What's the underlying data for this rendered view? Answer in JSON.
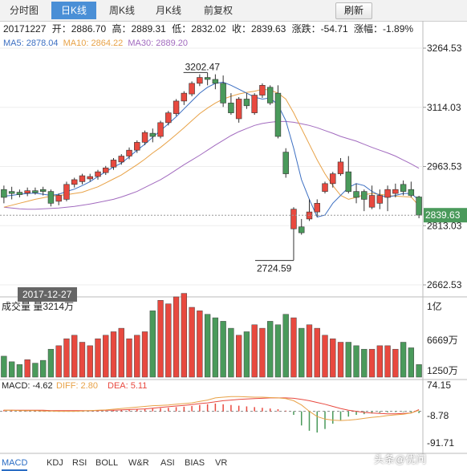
{
  "tabs": [
    {
      "label": "分时图"
    },
    {
      "label": "日K线"
    },
    {
      "label": "周K线"
    },
    {
      "label": "月K线"
    },
    {
      "label": "前复权"
    }
  ],
  "refresh_label": "刷新",
  "info": {
    "date": "20171227",
    "open": "开：2886.70",
    "high": "高：2889.31",
    "low": "低：2832.02",
    "close": "收：2839.63",
    "change": "涨跌：-54.71",
    "pct": "涨幅：-1.89%"
  },
  "ma": {
    "ma5": "MA5: 2878.04",
    "ma10": "MA10: 2864.22",
    "ma30": "MA30: 2889.20"
  },
  "price_axis": [
    "3264.53",
    "3114.03",
    "2963.53",
    "2813.03",
    "2662.53"
  ],
  "current_price": "2839.63",
  "annotations": {
    "high": "3202.47",
    "low": "2724.59",
    "date": "2017-12-27"
  },
  "volume": {
    "title": "成交量 量3214万",
    "axis": [
      "1亿",
      "6669万",
      "1250万"
    ]
  },
  "macd": {
    "title": "MACD: -4.62",
    "diff": "DIFF: 2.80",
    "dea": "DEA: 5.11",
    "axis": [
      "74.15",
      "-8.78",
      "-91.71"
    ]
  },
  "indicator_tabs": [
    "MACD",
    "KDJ",
    "RSI",
    "BOLL",
    "W&R",
    "ASI",
    "BIAS",
    "VR"
  ],
  "watermark": "头条@优问",
  "colors": {
    "up": "#e8493f",
    "down": "#4a9a5b",
    "ma5": "#3c6fc2",
    "ma10": "#e8a247",
    "ma30": "#a26bbf"
  },
  "chart_data": {
    "type": "candlestick",
    "candles": [
      [
        2905,
        2915,
        2870,
        2885
      ],
      [
        2900,
        2912,
        2880,
        2895
      ],
      [
        2898,
        2905,
        2885,
        2892
      ],
      [
        2896,
        2910,
        2888,
        2902
      ],
      [
        2902,
        2910,
        2892,
        2897
      ],
      [
        2905,
        2912,
        2890,
        2900
      ],
      [
        2900,
        2905,
        2862,
        2870
      ],
      [
        2875,
        2895,
        2865,
        2890
      ],
      [
        2880,
        2925,
        2875,
        2918
      ],
      [
        2918,
        2935,
        2910,
        2930
      ],
      [
        2925,
        2945,
        2918,
        2940
      ],
      [
        2932,
        2945,
        2925,
        2938
      ],
      [
        2938,
        2955,
        2930,
        2950
      ],
      [
        2948,
        2965,
        2942,
        2960
      ],
      [
        2962,
        2985,
        2955,
        2980
      ],
      [
        2975,
        2995,
        2968,
        2990
      ],
      [
        2990,
        3012,
        2982,
        3005
      ],
      [
        3005,
        3030,
        2998,
        3025
      ],
      [
        3025,
        3055,
        3018,
        3050
      ],
      [
        3048,
        3060,
        3025,
        3040
      ],
      [
        3040,
        3080,
        3035,
        3075
      ],
      [
        3075,
        3105,
        3068,
        3100
      ],
      [
        3098,
        3135,
        3092,
        3130
      ],
      [
        3130,
        3155,
        3120,
        3150
      ],
      [
        3148,
        3180,
        3142,
        3175
      ],
      [
        3175,
        3198,
        3168,
        3190
      ],
      [
        3190,
        3202,
        3170,
        3185
      ],
      [
        3185,
        3198,
        3160,
        3175
      ],
      [
        3175,
        3195,
        3115,
        3125
      ],
      [
        3125,
        3150,
        3095,
        3100
      ],
      [
        3085,
        3140,
        3075,
        3135
      ],
      [
        3135,
        3150,
        3110,
        3118
      ],
      [
        3100,
        3150,
        3095,
        3145
      ],
      [
        3145,
        3175,
        3138,
        3170
      ],
      [
        3165,
        3170,
        3120,
        3125
      ],
      [
        3150,
        3170,
        3035,
        3040
      ],
      [
        3000,
        3010,
        2935,
        2945
      ],
      [
        2805,
        2860,
        2725,
        2855
      ],
      [
        2810,
        2830,
        2790,
        2795
      ],
      [
        2830,
        2880,
        2825,
        2848
      ],
      [
        2848,
        2880,
        2835,
        2870
      ],
      [
        2900,
        2925,
        2895,
        2920
      ],
      [
        2920,
        2950,
        2910,
        2945
      ],
      [
        2945,
        2985,
        2940,
        2975
      ],
      [
        2950,
        2990,
        2895,
        2900
      ],
      [
        2900,
        2920,
        2870,
        2885
      ],
      [
        2900,
        2905,
        2850,
        2880
      ],
      [
        2860,
        2915,
        2855,
        2890
      ],
      [
        2870,
        2905,
        2855,
        2890
      ],
      [
        2885,
        2915,
        2850,
        2905
      ],
      [
        2895,
        2920,
        2885,
        2905
      ],
      [
        2918,
        2928,
        2890,
        2900
      ],
      [
        2905,
        2925,
        2885,
        2890
      ],
      [
        2886,
        2889,
        2832,
        2840
      ]
    ],
    "ma5": [
      2888,
      2890,
      2893,
      2895,
      2896,
      2893,
      2890,
      2893,
      2900,
      2906,
      2915,
      2925,
      2938,
      2950,
      2962,
      2972,
      2988,
      3005,
      3020,
      3038,
      3055,
      3072,
      3090,
      3110,
      3130,
      3150,
      3165,
      3175,
      3178,
      3170,
      3160,
      3150,
      3140,
      3135,
      3138,
      3120,
      3080,
      3010,
      2930,
      2880,
      2835,
      2840,
      2870,
      2890,
      2910,
      2920,
      2915,
      2900,
      2890,
      2885,
      2890,
      2895,
      2895,
      2878
    ],
    "ma10": [
      2860,
      2865,
      2870,
      2875,
      2880,
      2884,
      2888,
      2890,
      2892,
      2895,
      2898,
      2905,
      2912,
      2922,
      2932,
      2942,
      2955,
      2968,
      2982,
      2998,
      3012,
      3028,
      3045,
      3062,
      3080,
      3098,
      3112,
      3125,
      3135,
      3142,
      3148,
      3152,
      3155,
      3160,
      3158,
      3150,
      3135,
      3100,
      3060,
      3020,
      2980,
      2945,
      2915,
      2890,
      2880,
      2885,
      2892,
      2895,
      2893,
      2890,
      2888,
      2887,
      2886,
      2864
    ],
    "ma30": [
      2860,
      2858,
      2856,
      2855,
      2855,
      2856,
      2857,
      2858,
      2860,
      2862,
      2865,
      2868,
      2872,
      2876,
      2880,
      2886,
      2893,
      2900,
      2910,
      2920,
      2930,
      2942,
      2955,
      2968,
      2980,
      2992,
      3005,
      3018,
      3030,
      3042,
      3052,
      3060,
      3068,
      3073,
      3076,
      3078,
      3078,
      3076,
      3072,
      3068,
      3062,
      3055,
      3048,
      3040,
      3034,
      3028,
      3020,
      3012,
      3005,
      2998,
      2990,
      2980,
      2970,
      2959
    ],
    "volume": [
      30,
      22,
      18,
      25,
      20,
      24,
      40,
      45,
      55,
      60,
      50,
      45,
      55,
      60,
      65,
      70,
      55,
      60,
      65,
      95,
      110,
      105,
      115,
      120,
      100,
      95,
      90,
      85,
      80,
      70,
      60,
      65,
      75,
      70,
      80,
      75,
      90,
      85,
      70,
      75,
      70,
      60,
      55,
      50,
      50,
      45,
      40,
      40,
      45,
      45,
      40,
      50,
      42,
      18
    ],
    "macd_hist": [
      4,
      4,
      3,
      3,
      3,
      2,
      2,
      1,
      1,
      0.5,
      1,
      1,
      1,
      2,
      3,
      4,
      5,
      6,
      7,
      8,
      9,
      10,
      12,
      13,
      15,
      18,
      20,
      22,
      20,
      18,
      16,
      14,
      12,
      10,
      8,
      6,
      2,
      -10,
      -40,
      -55,
      -60,
      -50,
      -35,
      -25,
      -15,
      -10,
      -8,
      -6,
      -4,
      -3,
      -2,
      -2,
      -3,
      -5
    ],
    "macd_diff": [
      3,
      3,
      2,
      2,
      2,
      1,
      1,
      0,
      0,
      0,
      1,
      2,
      3,
      4,
      6,
      8,
      10,
      12,
      14,
      16,
      17,
      18,
      20,
      22,
      24,
      28,
      32,
      38,
      40,
      42,
      42,
      41,
      40,
      40,
      39,
      38,
      36,
      30,
      18,
      0,
      -15,
      -22,
      -25,
      -26,
      -25,
      -23,
      -20,
      -17,
      -15,
      -12,
      -10,
      -8,
      -5,
      3
    ],
    "macd_dea": [
      3,
      3,
      3,
      3,
      3,
      3,
      2,
      2,
      2,
      2,
      2,
      2,
      2,
      3,
      3,
      4,
      5,
      6,
      7,
      9,
      11,
      13,
      15,
      17,
      19,
      22,
      24,
      27,
      30,
      32,
      34,
      35,
      36,
      37,
      38,
      38,
      38,
      37,
      34,
      30,
      25,
      20,
      14,
      8,
      3,
      0,
      -3,
      -5,
      -6,
      -7,
      -7,
      -6,
      -5,
      5
    ]
  }
}
